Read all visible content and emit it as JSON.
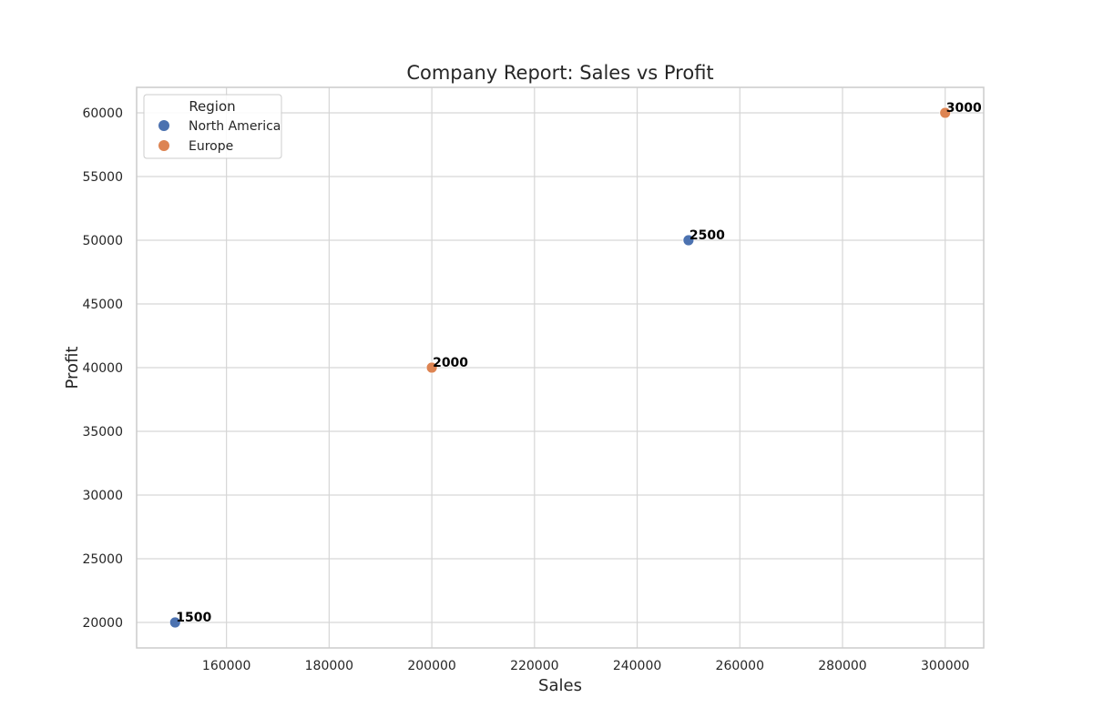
{
  "chart_data": {
    "type": "scatter",
    "title": "Company Report: Sales vs Profit",
    "xlabel": "Sales",
    "ylabel": "Profit",
    "xlim": [
      142500,
      307500
    ],
    "ylim": [
      18000,
      62000
    ],
    "x_ticks": [
      160000,
      180000,
      200000,
      220000,
      240000,
      260000,
      280000,
      300000
    ],
    "y_ticks": [
      20000,
      25000,
      30000,
      35000,
      40000,
      45000,
      50000,
      55000,
      60000
    ],
    "grid": true,
    "legend": {
      "title": "Region",
      "placement": "top-left"
    },
    "series": [
      {
        "name": "North America",
        "color": "#4c72b0",
        "points": [
          {
            "x": 150000,
            "y": 20000,
            "label": "1500"
          },
          {
            "x": 250000,
            "y": 50000,
            "label": "2500"
          }
        ]
      },
      {
        "name": "Europe",
        "color": "#dd8452",
        "points": [
          {
            "x": 200000,
            "y": 40000,
            "label": "2000"
          },
          {
            "x": 300000,
            "y": 60000,
            "label": "3000"
          }
        ]
      }
    ]
  }
}
